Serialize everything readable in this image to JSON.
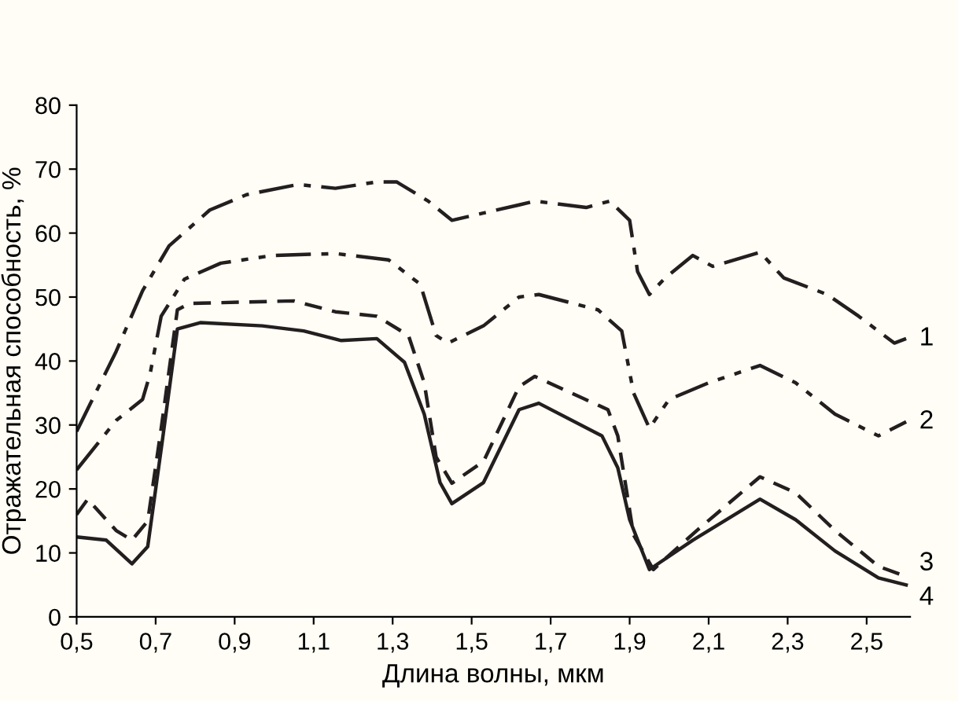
{
  "chart_data": {
    "type": "line",
    "xlabel": "Длина волны, мкм",
    "ylabel": "Отражательная способность, %",
    "xlim": [
      0.5,
      2.61
    ],
    "ylim": [
      0,
      80
    ],
    "xticks": [
      {
        "value": 0.5,
        "label": "0,5"
      },
      {
        "value": 0.7,
        "label": "0,7"
      },
      {
        "value": 0.9,
        "label": "0,9"
      },
      {
        "value": 1.1,
        "label": "1,1"
      },
      {
        "value": 1.3,
        "label": "1,3"
      },
      {
        "value": 1.5,
        "label": "1,5"
      },
      {
        "value": 1.7,
        "label": "1,7"
      },
      {
        "value": 1.9,
        "label": "1,9"
      },
      {
        "value": 2.1,
        "label": "2,1"
      },
      {
        "value": 2.3,
        "label": "2,3"
      },
      {
        "value": 2.5,
        "label": "2,5"
      }
    ],
    "yticks": [
      0,
      10,
      20,
      30,
      40,
      50,
      60,
      70,
      80
    ],
    "grid": false,
    "legend": false,
    "series": [
      {
        "name": "1",
        "color": "#231f20",
        "line_style": "dashdot",
        "x": [
          0.5,
          0.6,
          0.667,
          0.734,
          0.837,
          0.93,
          1.06,
          1.155,
          1.26,
          1.31,
          1.39,
          1.45,
          1.62,
          1.66,
          1.79,
          1.85,
          1.9,
          1.92,
          1.95,
          1.99,
          2.06,
          2.11,
          2.23,
          2.29,
          2.4,
          2.48,
          2.57,
          2.6
        ],
        "values": [
          29,
          41.5,
          51,
          58,
          63.6,
          66,
          67.6,
          67,
          68,
          68,
          65,
          62,
          64.4,
          65,
          64,
          65,
          62,
          54,
          50.4,
          53,
          56.5,
          54.8,
          57,
          53,
          50.4,
          47,
          42.8,
          43.5
        ]
      },
      {
        "name": "2",
        "color": "#231f20",
        "line_style": "dashdotdot",
        "x": [
          0.5,
          0.6,
          0.667,
          0.686,
          0.714,
          0.773,
          0.865,
          0.996,
          1.155,
          1.29,
          1.37,
          1.41,
          1.44,
          1.53,
          1.62,
          1.67,
          1.82,
          1.88,
          1.91,
          1.95,
          2.0,
          2.1,
          2.23,
          2.32,
          2.42,
          2.53,
          2.6
        ],
        "values": [
          23,
          30.7,
          34,
          38,
          47,
          52.8,
          55.3,
          56.5,
          56.8,
          55.8,
          52,
          44,
          42.8,
          45.5,
          50,
          50.4,
          48,
          44.7,
          35,
          29.5,
          34,
          36.6,
          39.3,
          36.6,
          31.7,
          28.3,
          30.5
        ]
      },
      {
        "name": "3",
        "color": "#231f20",
        "line_style": "dashed",
        "x": [
          0.5,
          0.528,
          0.6,
          0.64,
          0.68,
          0.713,
          0.755,
          0.786,
          1.05,
          1.155,
          1.26,
          1.34,
          1.38,
          1.41,
          1.45,
          1.53,
          1.62,
          1.66,
          1.845,
          1.87,
          1.91,
          1.96,
          2.07,
          2.23,
          2.32,
          2.42,
          2.53,
          2.6
        ],
        "values": [
          16,
          18.4,
          13.5,
          12,
          15,
          29,
          48,
          49,
          49.4,
          47.7,
          47,
          44,
          36.6,
          25,
          20.9,
          24.3,
          36,
          37.6,
          32.4,
          28.3,
          12.8,
          7.4,
          13.5,
          21.9,
          19.4,
          13.5,
          7.9,
          6.3
        ]
      },
      {
        "name": "4",
        "color": "#231f20",
        "line_style": "solid",
        "x": [
          0.5,
          0.575,
          0.64,
          0.68,
          0.718,
          0.755,
          0.813,
          0.97,
          1.075,
          1.17,
          1.26,
          1.33,
          1.38,
          1.42,
          1.45,
          1.53,
          1.62,
          1.67,
          1.83,
          1.87,
          1.9,
          1.95,
          2.06,
          2.23,
          2.32,
          2.42,
          2.53,
          2.6
        ],
        "values": [
          12.5,
          12,
          8.3,
          11,
          28,
          45,
          46,
          45.5,
          44.7,
          43.2,
          43.5,
          39.8,
          31.7,
          21,
          17.7,
          21,
          32.4,
          33.4,
          28.3,
          23.3,
          15.2,
          7.4,
          12,
          18.4,
          15.2,
          10.3,
          6.1,
          5
        ]
      }
    ]
  }
}
